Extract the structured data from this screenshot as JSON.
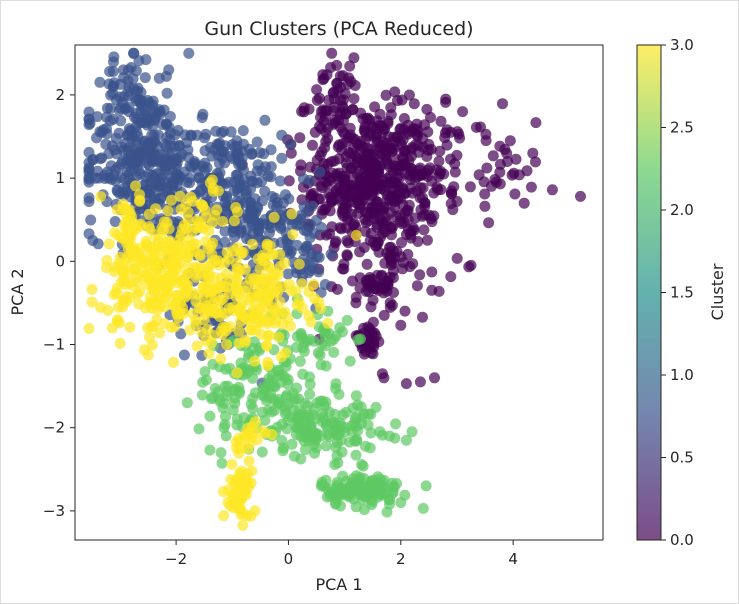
{
  "chart_data": {
    "type": "scatter",
    "title": "Gun Clusters (PCA Reduced)",
    "xlabel": "PCA 1",
    "ylabel": "PCA 2",
    "xlim": [
      -3.8,
      5.6
    ],
    "ylim": [
      -3.35,
      2.6
    ],
    "xticks": [
      -2,
      0,
      2,
      4
    ],
    "yticks": [
      -3,
      -2,
      -1,
      0,
      1,
      2
    ],
    "xtick_labels": [
      "−2",
      "0",
      "2",
      "4"
    ],
    "ytick_labels": [
      "−3",
      "−2",
      "−1",
      "0",
      "1",
      "2"
    ],
    "grid": false,
    "marker_alpha": 0.7,
    "colorbar": {
      "label": "Cluster",
      "range": [
        0.0,
        3.0
      ],
      "ticks": [
        0.0,
        0.5,
        1.0,
        1.5,
        2.0,
        2.5,
        3.0
      ],
      "tick_labels": [
        "0.0",
        "0.5",
        "1.0",
        "1.5",
        "2.0",
        "2.5",
        "3.0"
      ],
      "colormap": "viridis",
      "colormap_stops": [
        "#440154",
        "#3b528b",
        "#21918c",
        "#5ec962",
        "#fde725"
      ]
    },
    "clusters": [
      {
        "cluster": 0,
        "color": "#440154",
        "regions": [
          {
            "cx": 1.4,
            "cy": 0.95,
            "sx": 0.55,
            "sy": 0.45,
            "n": 380
          },
          {
            "cx": 0.8,
            "cy": 1.9,
            "sx": 0.25,
            "sy": 0.25,
            "n": 60
          },
          {
            "cx": 2.3,
            "cy": 1.2,
            "sx": 0.7,
            "sy": 0.35,
            "n": 120
          },
          {
            "cx": 3.4,
            "cy": 1.05,
            "sx": 0.6,
            "sy": 0.2,
            "n": 30
          },
          {
            "cx": 1.9,
            "cy": 0.0,
            "sx": 0.45,
            "sy": 0.35,
            "n": 80
          },
          {
            "cx": 1.5,
            "cy": -0.35,
            "sx": 0.15,
            "sy": 0.1,
            "n": 25
          },
          {
            "cx": 1.4,
            "cy": -0.95,
            "sx": 0.15,
            "sy": 0.1,
            "n": 35
          }
        ],
        "points": [
          [
            5.2,
            0.78
          ],
          [
            4.7,
            0.86
          ],
          [
            4.35,
            1.3
          ],
          [
            3.95,
            1.45
          ],
          [
            3.9,
            1.2
          ],
          [
            0.75,
            2.33
          ],
          [
            2.1,
            -1.47
          ],
          [
            2.35,
            -1.45
          ],
          [
            2.6,
            -1.4
          ],
          [
            1.7,
            -1.4
          ],
          [
            0.05,
            1.3
          ],
          [
            1.2,
            -0.5
          ],
          [
            0.45,
            0.7
          ],
          [
            0.35,
            0.45
          ],
          [
            0.45,
            -0.3
          ],
          [
            3.1,
            1.8
          ],
          [
            2.8,
            1.95
          ]
        ]
      },
      {
        "cluster": 1,
        "color": "#3b528b",
        "regions": [
          {
            "cx": -2.6,
            "cy": 1.2,
            "sx": 0.5,
            "sy": 0.45,
            "n": 320
          },
          {
            "cx": -1.2,
            "cy": 0.9,
            "sx": 0.55,
            "sy": 0.4,
            "n": 200
          },
          {
            "cx": -0.4,
            "cy": 0.5,
            "sx": 0.4,
            "sy": 0.35,
            "n": 120
          },
          {
            "cx": -2.8,
            "cy": 2.0,
            "sx": 0.25,
            "sy": 0.25,
            "n": 40
          },
          {
            "cx": -1.3,
            "cy": -0.6,
            "sx": 0.4,
            "sy": 0.3,
            "n": 60
          },
          {
            "cx": 0.3,
            "cy": 0.0,
            "sx": 0.2,
            "sy": 0.25,
            "n": 40
          }
        ],
        "points": [
          [
            -2.8,
            2.33
          ],
          [
            -2.3,
            2.2
          ],
          [
            -3.3,
            0.8
          ],
          [
            -3.2,
            1.0
          ],
          [
            -1.0,
            1.4
          ],
          [
            -0.8,
            1.1
          ]
        ]
      },
      {
        "cluster": 2,
        "color": "#5ec962",
        "regions": [
          {
            "cx": -0.6,
            "cy": -1.5,
            "sx": 0.5,
            "sy": 0.35,
            "n": 120
          },
          {
            "cx": 0.5,
            "cy": -1.95,
            "sx": 0.55,
            "sy": 0.2,
            "n": 150
          },
          {
            "cx": 1.3,
            "cy": -2.75,
            "sx": 0.35,
            "sy": 0.1,
            "n": 110
          },
          {
            "cx": 0.5,
            "cy": -1.0,
            "sx": 0.3,
            "sy": 0.2,
            "n": 40
          }
        ],
        "points": [
          [
            2.4,
            -2.97
          ],
          [
            2.45,
            -2.7
          ],
          [
            2.0,
            -2.9
          ],
          [
            2.1,
            -2.15
          ],
          [
            2.2,
            -2.05
          ],
          [
            1.8,
            -2.1
          ],
          [
            0.9,
            -1.6
          ],
          [
            1.3,
            -1.95
          ],
          [
            0.7,
            -0.6
          ],
          [
            1.1,
            -1.2
          ],
          [
            -1.8,
            -1.7
          ],
          [
            -1.2,
            -2.3
          ]
        ]
      },
      {
        "cluster": 3,
        "color": "#fde725",
        "regions": [
          {
            "cx": -2.1,
            "cy": -0.2,
            "sx": 0.6,
            "sy": 0.35,
            "n": 260
          },
          {
            "cx": -0.6,
            "cy": -0.45,
            "sx": 0.5,
            "sy": 0.35,
            "n": 180
          },
          {
            "cx": -2.8,
            "cy": 0.3,
            "sx": 0.25,
            "sy": 0.3,
            "n": 50
          },
          {
            "cx": -0.85,
            "cy": -2.8,
            "sx": 0.1,
            "sy": 0.15,
            "n": 50
          },
          {
            "cx": -0.75,
            "cy": -2.1,
            "sx": 0.15,
            "sy": 0.1,
            "n": 20
          },
          {
            "cx": -1.6,
            "cy": 0.55,
            "sx": 0.4,
            "sy": 0.2,
            "n": 40
          }
        ],
        "points": [
          [
            -3.05,
            0.62
          ],
          [
            -3.1,
            -0.4
          ],
          [
            -1.1,
            -1.0
          ],
          [
            -0.6,
            -1.2
          ],
          [
            -0.9,
            -2.97
          ],
          [
            -0.7,
            -2.4
          ]
        ]
      }
    ]
  }
}
